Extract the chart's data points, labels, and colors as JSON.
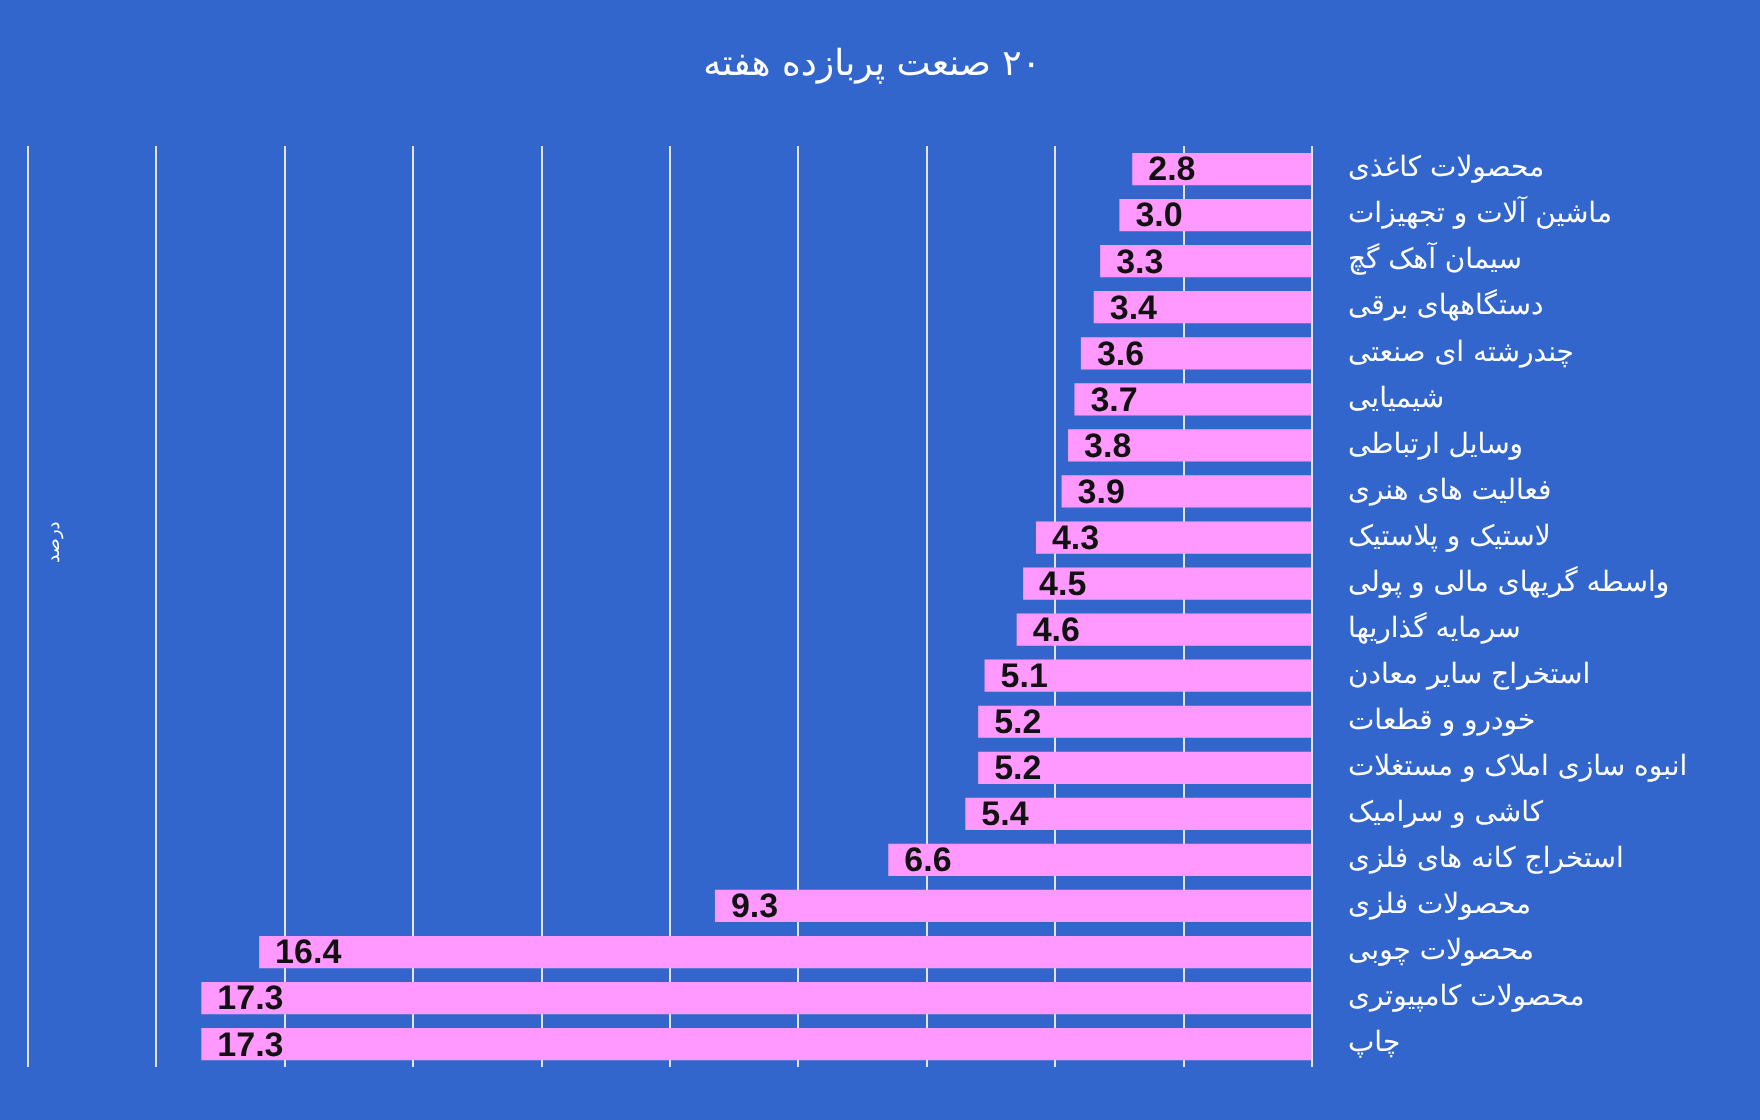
{
  "chart_data": {
    "type": "bar",
    "orientation": "horizontal",
    "title": "۲۰ صنعت پربازده هفته",
    "ylabel": "درصد",
    "categories": [
      "محصولات کاغذی",
      "ماشین آلات و تجهیزات",
      "سیمان آهک گچ",
      "دستگاههای برقی",
      "چندرشته ای صنعتی",
      "شیمیایی",
      "وسایل ارتباطی",
      "فعالیت های هنری",
      "لاستیک و پلاستیک",
      "واسطه گریهای مالی و پولی",
      "سرمایه گذاریها",
      "استخراج سایر معادن",
      "خودرو و قطعات",
      "انبوه سازی املاک و مستغلات",
      "کاشی و سرامیک",
      "استخراج کانه های فلزی",
      "محصولات فلزی",
      "محصولات چوبی",
      "محصولات کامپیوتری",
      "چاپ"
    ],
    "values": [
      2.8,
      3.0,
      3.3,
      3.4,
      3.6,
      3.7,
      3.8,
      3.9,
      4.3,
      4.5,
      4.6,
      5.1,
      5.2,
      5.2,
      5.4,
      6.6,
      9.3,
      16.4,
      17.3,
      17.3
    ],
    "value_labels": [
      "2.8",
      "3.0",
      "3.3",
      "3.4",
      "3.6",
      "3.7",
      "3.8",
      "3.9",
      "4.3",
      "4.5",
      "4.6",
      "5.1",
      "5.2",
      "5.2",
      "5.4",
      "6.6",
      "9.3",
      "16.4",
      "17.3",
      "17.3"
    ],
    "color": "#ff99ff",
    "xlim": [
      20,
      0
    ],
    "xticks": [
      {
        "value": 0,
        "label": null
      },
      {
        "value": 2,
        "label": null
      },
      {
        "value": 4,
        "label": null
      },
      {
        "value": 6,
        "label": null
      },
      {
        "value": 8,
        "label": null
      },
      {
        "value": 10,
        "label": null
      },
      {
        "value": 12,
        "label": null
      },
      {
        "value": 14,
        "label": null
      },
      {
        "value": 16,
        "label": null
      },
      {
        "value": 18,
        "label": null
      },
      {
        "value": 20,
        "label": null
      }
    ],
    "grid": "x",
    "tick_labels": "y"
  }
}
